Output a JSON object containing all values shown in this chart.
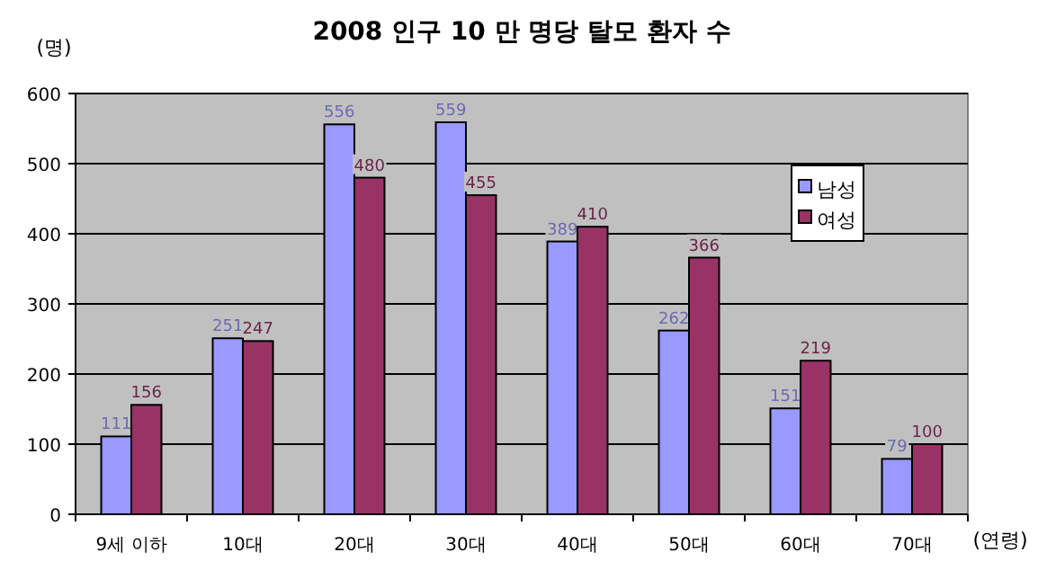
{
  "chart_data": {
    "type": "bar",
    "title": "2008 인구 10 만 명당 탈모 환자 수",
    "ylabel": "(명)",
    "xlabel": "(연령)",
    "categories": [
      "9세 이하",
      "10대",
      "20대",
      "30대",
      "40대",
      "50대",
      "60대",
      "70대"
    ],
    "series": [
      {
        "name": "남성",
        "color": "#9999ff",
        "values": [
          111,
          251,
          556,
          559,
          389,
          262,
          151,
          79
        ]
      },
      {
        "name": "여성",
        "color": "#993366",
        "values": [
          156,
          247,
          480,
          455,
          410,
          366,
          219,
          100
        ]
      }
    ],
    "ylim": [
      0,
      600
    ],
    "yticks": [
      0,
      100,
      200,
      300,
      400,
      500,
      600
    ],
    "grid": "y",
    "legend": "top right",
    "data_labels": true
  }
}
